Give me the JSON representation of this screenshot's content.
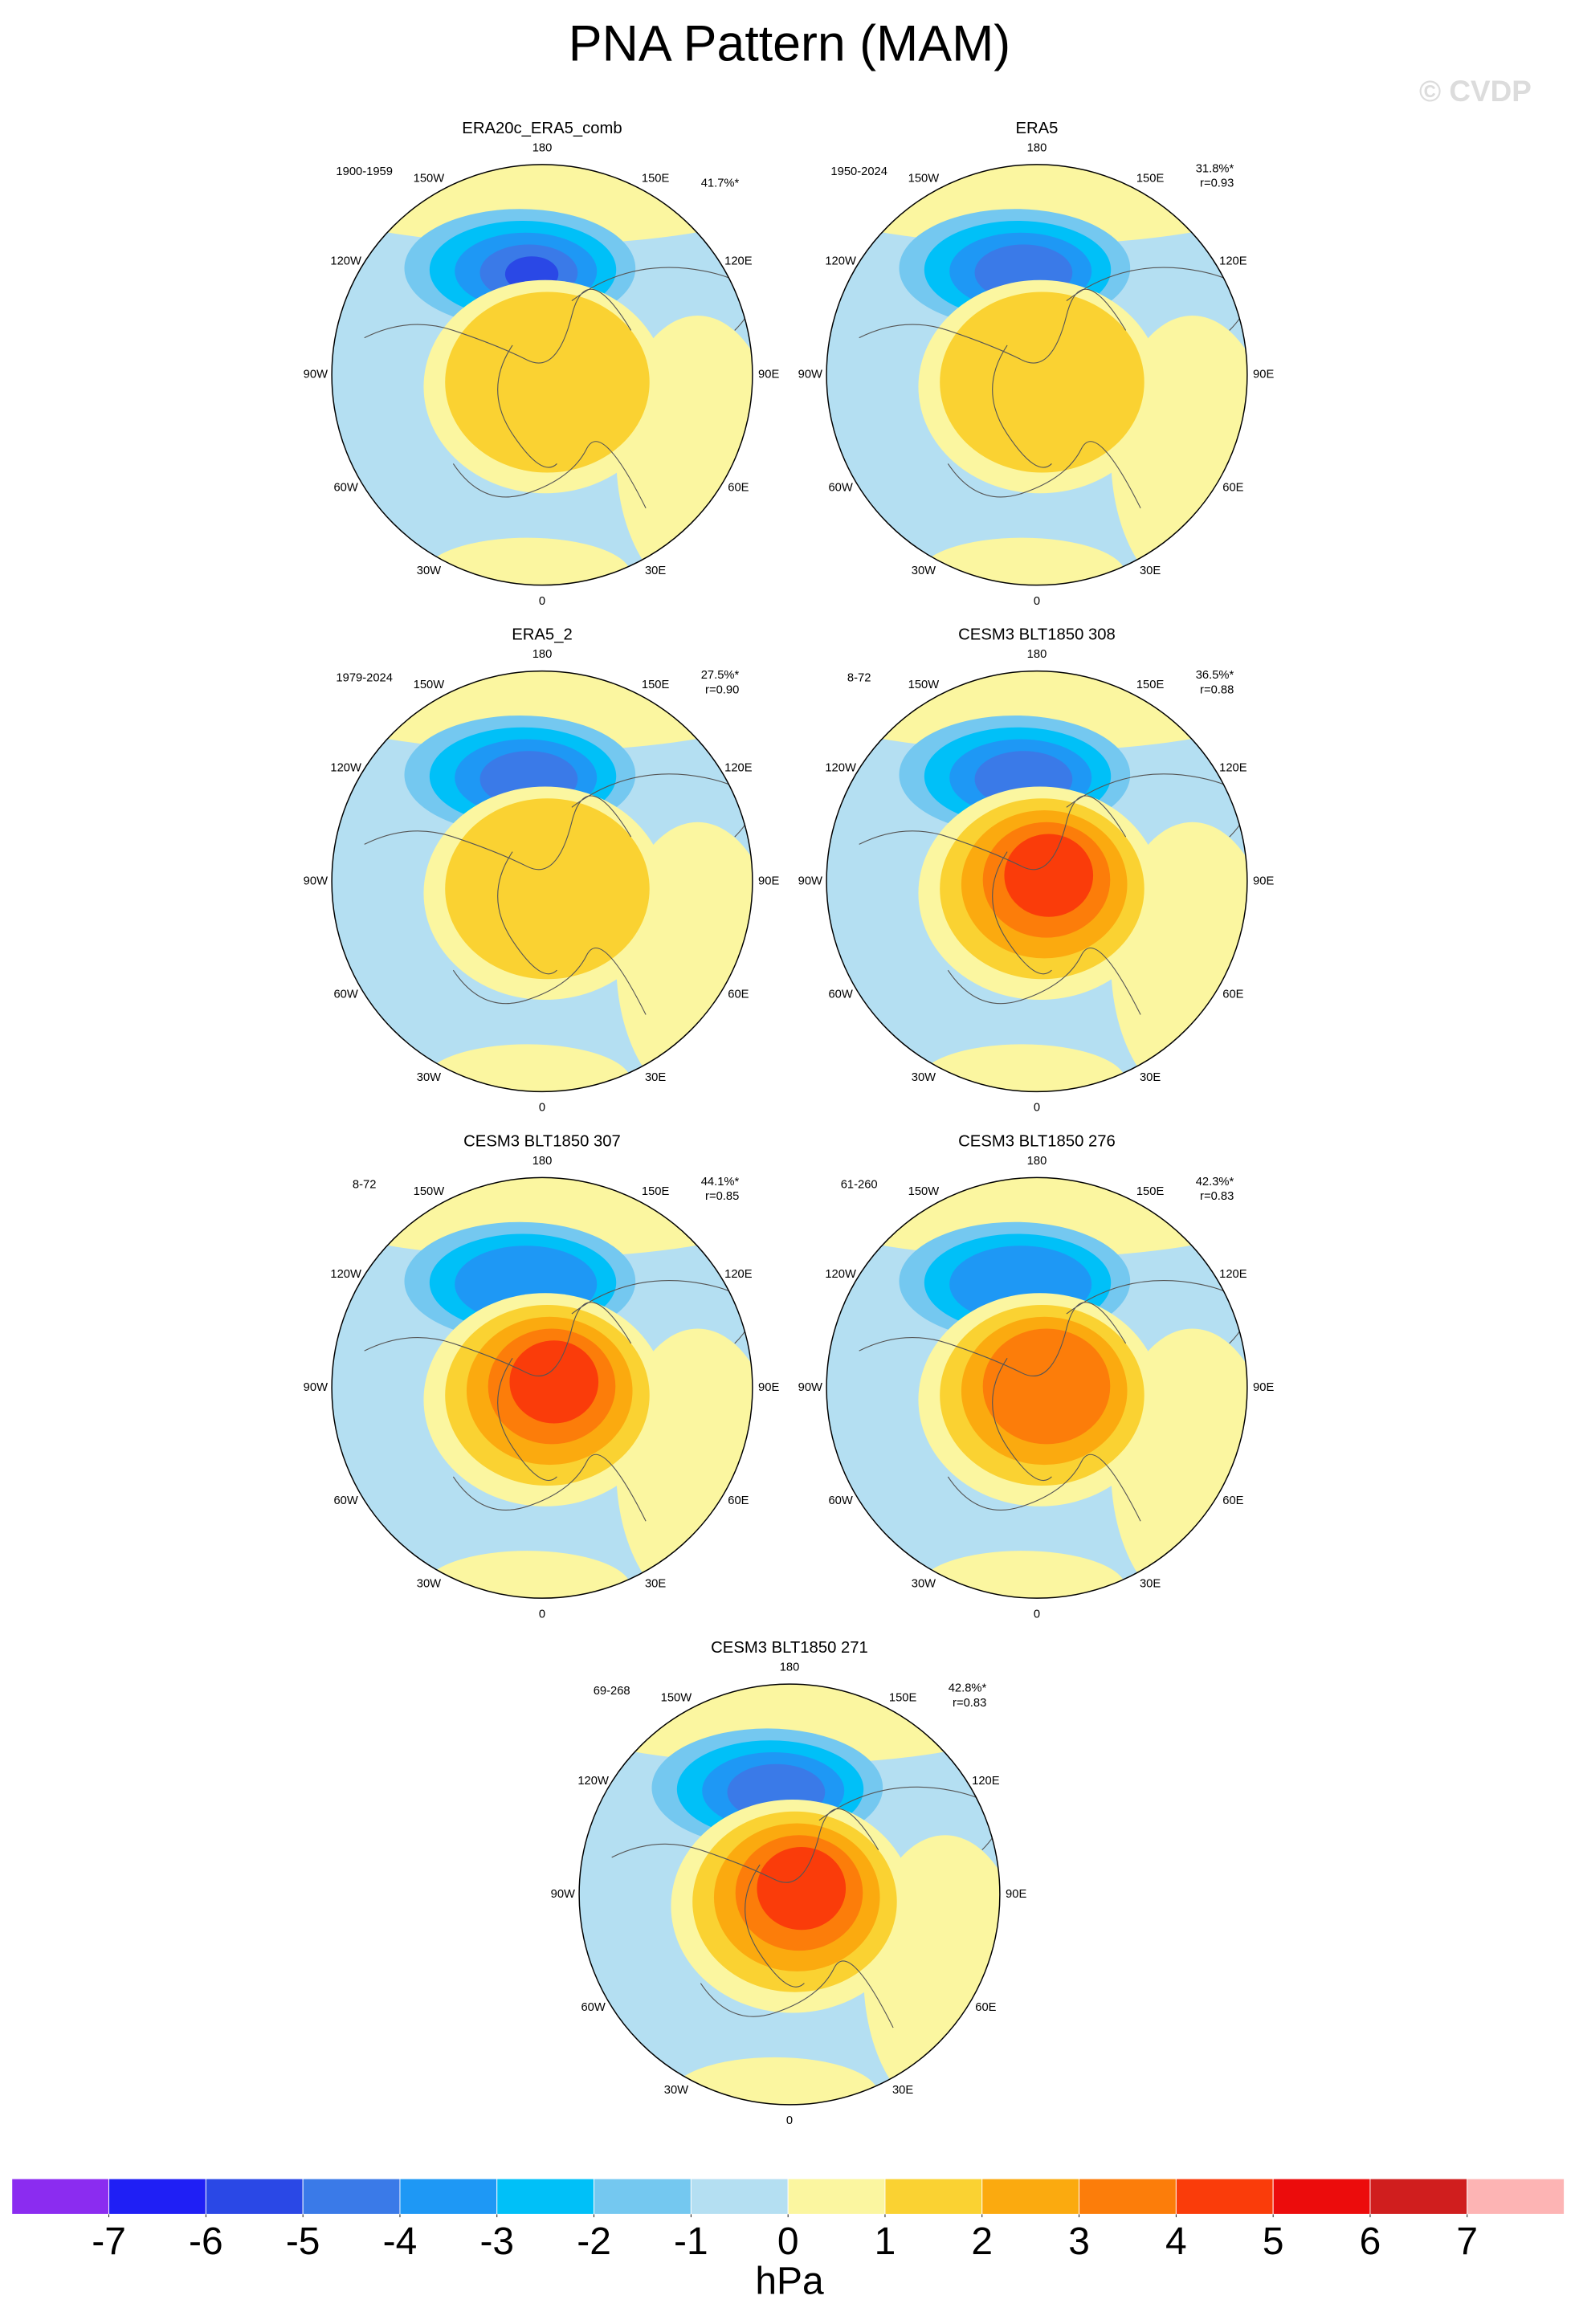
{
  "title": "PNA Pattern (MAM)",
  "watermark": "© CVDP",
  "longitude_labels": [
    "180",
    "150E",
    "120E",
    "90E",
    "60E",
    "30E",
    "0",
    "30W",
    "60W",
    "90W",
    "120W",
    "150W"
  ],
  "panels": [
    {
      "title": "ERA20c_ERA5_comb",
      "period": "1900-1959",
      "percent": "41.7%*"
    },
    {
      "title": "ERA5",
      "period": "1950-2024",
      "percent": "31.8%*",
      "r": "r=0.93"
    },
    {
      "title": "ERA5_2",
      "period": "1979-2024",
      "percent": "27.5%*",
      "r": "r=0.90"
    },
    {
      "title": "CESM3 BLT1850 308",
      "period": "8-72",
      "percent": "36.5%*",
      "r": "r=0.88"
    },
    {
      "title": "CESM3 BLT1850 307",
      "period": "8-72",
      "percent": "44.1%*",
      "r": "r=0.85"
    },
    {
      "title": "CESM3 BLT1850 276",
      "period": "61-260",
      "percent": "42.3%*",
      "r": "r=0.83"
    },
    {
      "title": "CESM3 BLT1850 271",
      "period": "69-268",
      "percent": "42.8%*",
      "r": "r=0.83"
    }
  ],
  "colorbar": {
    "colors": [
      "#8b2cf0",
      "#1f1ff5",
      "#2a48e6",
      "#3a7ae8",
      "#1e98f5",
      "#00c0f8",
      "#74c8f0",
      "#b4dff2",
      "#fbf6a0",
      "#fad232",
      "#fbaa0f",
      "#fc7d0a",
      "#fa3c0a",
      "#ec0c0c",
      "#d01e1e",
      "#fdb4b4"
    ],
    "levels": [
      -7,
      -6,
      -5,
      -4,
      -3,
      -2,
      -1,
      0,
      1,
      2,
      3,
      4,
      5,
      6,
      7
    ],
    "unit": "hPa"
  }
}
